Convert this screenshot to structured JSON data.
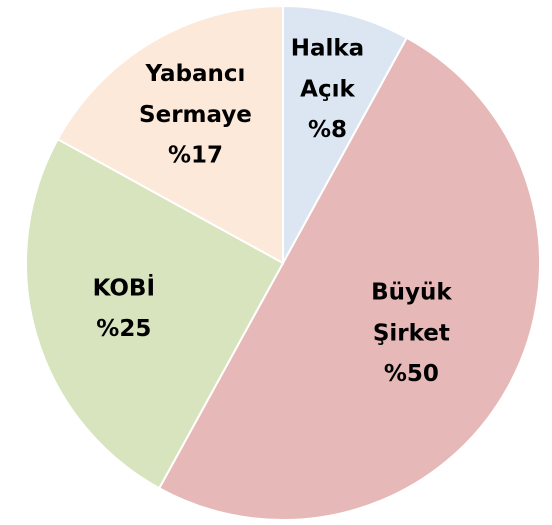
{
  "chart_data": {
    "type": "pie",
    "categories": [
      "Halka Açık",
      "Büyük Şirket",
      "KOBİ",
      "Yabancı Sermaye"
    ],
    "values": [
      8,
      50,
      25,
      17
    ],
    "value_labels": [
      "%8",
      "%50",
      "%25",
      "%17"
    ],
    "colors": [
      "#dce6f2",
      "#e6b9b8",
      "#d7e4bd",
      "#fde9d9"
    ]
  }
}
